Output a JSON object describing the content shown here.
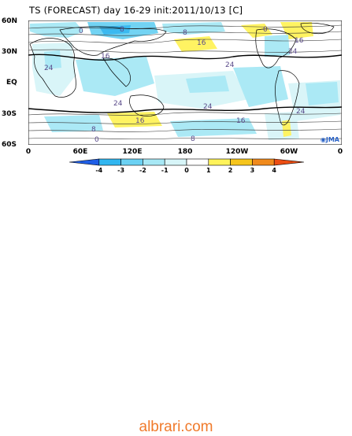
{
  "title": "TS (FORECAST) day 16-29 init:2011/10/13  [C]",
  "lat_labels": [
    "60N",
    "30N",
    "EQ",
    "30S",
    "60S"
  ],
  "lon_labels": [
    "0",
    "60E",
    "120E",
    "180",
    "120W",
    "60W",
    "0"
  ],
  "contour_labels": [
    "0",
    "8",
    "16",
    "24",
    "24",
    "24",
    "16",
    "8",
    "0",
    "16",
    "24",
    "8",
    "16",
    "8",
    "24",
    "16",
    "24",
    "0"
  ],
  "colorbar": {
    "ticks": [
      "-4",
      "-3",
      "-2",
      "-1",
      "0",
      "1",
      "2",
      "3",
      "4"
    ],
    "colors": [
      "#1f5ee6",
      "#31b6f0",
      "#6bd1f3",
      "#a7e8f5",
      "#d7f5f8",
      "#ffffff",
      "#fff35a",
      "#f6c51c",
      "#f08a1c",
      "#ec4d12"
    ]
  },
  "logo": "JMA",
  "footer": "albrari.com"
}
